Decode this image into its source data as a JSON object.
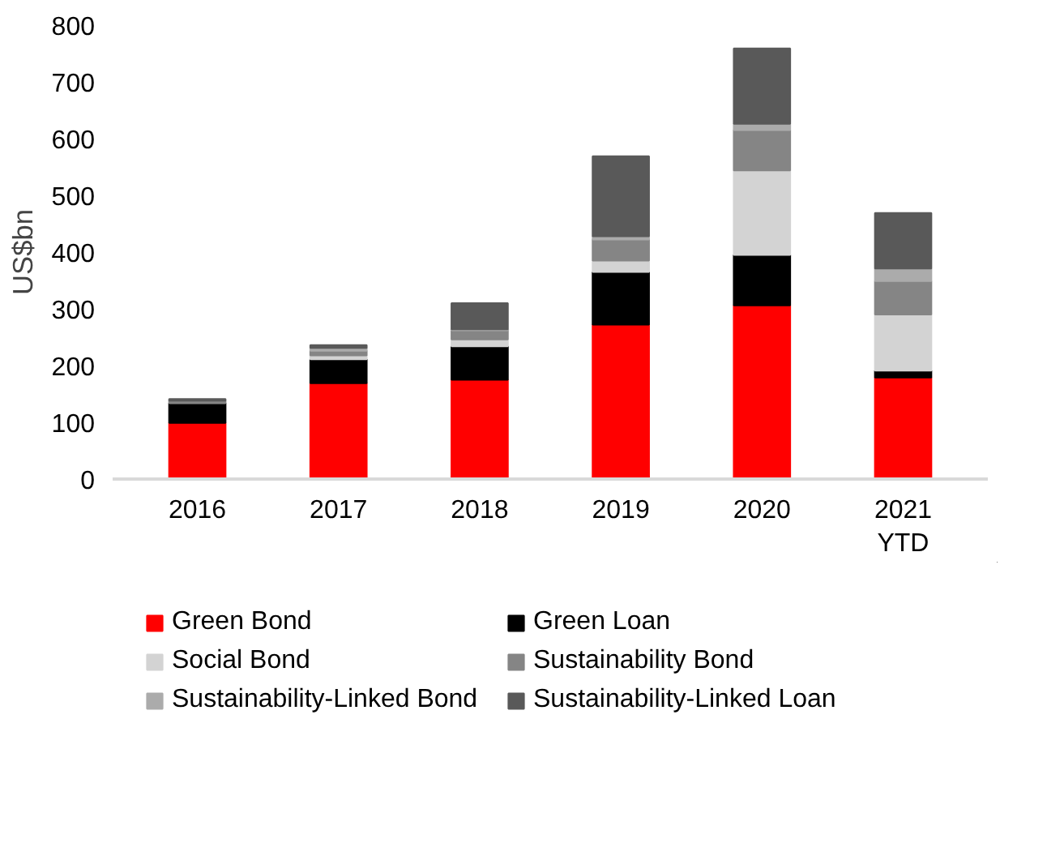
{
  "chart_data": {
    "type": "bar",
    "stacked": true,
    "ylabel": "US$bn",
    "categories": [
      "2016",
      "2017",
      "2018",
      "2019",
      "2020",
      "2021\nYTD"
    ],
    "series": [
      {
        "name": "Green Bond",
        "color": "#ff0000",
        "values": [
          99,
          169,
          175,
          272,
          306,
          179
        ]
      },
      {
        "name": "Green Loan",
        "color": "#000000",
        "values": [
          35,
          42,
          59,
          93,
          89,
          12
        ]
      },
      {
        "name": "Social Bond",
        "color": "#d3d3d3",
        "values": [
          null,
          7,
          12,
          20,
          149,
          99
        ]
      },
      {
        "name": "Sustainability Bond",
        "color": "#858585",
        "values": [
          4,
          8,
          16,
          37,
          71,
          59
        ]
      },
      {
        "name": "Sustainability-Linked Bond",
        "color": "#ababab",
        "values": [
          null,
          5,
          2,
          6,
          11,
          22
        ]
      },
      {
        "name": "Sustainability-Linked Loan",
        "color": "#595959",
        "values": [
          3,
          5,
          46,
          141,
          133,
          98
        ]
      }
    ],
    "ylim": [
      0,
      800
    ],
    "yticks": [
      0,
      100,
      200,
      300,
      400,
      500,
      600,
      700,
      800
    ],
    "grid": false,
    "legend": "bottom"
  }
}
